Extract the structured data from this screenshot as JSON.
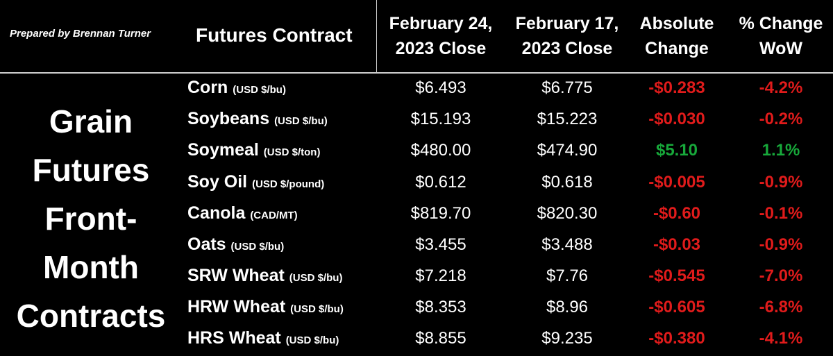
{
  "credit": "Prepared by Brennan Turner",
  "headers": {
    "contract": "Futures Contract",
    "feb24_line1": "February 24,",
    "feb24_line2": "2023 Close",
    "feb17_line1": "February 17,",
    "feb17_line2": "2023 Close",
    "abs_line1": "Absolute",
    "abs_line2": "Change",
    "pct_line1": "% Change",
    "pct_line2": "WoW"
  },
  "sidebar": [
    "Grain",
    "Futures",
    "Front-",
    "Month",
    "Contracts"
  ],
  "colors": {
    "negative": "#e01b1b",
    "positive": "#17a83a",
    "background": "#000000",
    "text": "#ffffff"
  },
  "rows": [
    {
      "name": "Corn",
      "unit": "(USD $/bu)",
      "feb24": "$6.493",
      "feb17": "$6.775",
      "abs": "-$0.283",
      "pct": "-4.2%",
      "direction": "neg"
    },
    {
      "name": "Soybeans",
      "unit": "(USD $/bu)",
      "feb24": "$15.193",
      "feb17": "$15.223",
      "abs": "-$0.030",
      "pct": "-0.2%",
      "direction": "neg"
    },
    {
      "name": "Soymeal",
      "unit": "(USD $/ton)",
      "feb24": "$480.00",
      "feb17": "$474.90",
      "abs": "$5.10",
      "pct": "1.1%",
      "direction": "pos"
    },
    {
      "name": "Soy Oil",
      "unit": "(USD $/pound)",
      "feb24": "$0.612",
      "feb17": "$0.618",
      "abs": "-$0.005",
      "pct": "-0.9%",
      "direction": "neg"
    },
    {
      "name": "Canola",
      "unit": "(CAD/MT)",
      "feb24": "$819.70",
      "feb17": "$820.30",
      "abs": "-$0.60",
      "pct": "-0.1%",
      "direction": "neg"
    },
    {
      "name": "Oats",
      "unit": "(USD $/bu)",
      "feb24": "$3.455",
      "feb17": "$3.488",
      "abs": "-$0.03",
      "pct": "-0.9%",
      "direction": "neg"
    },
    {
      "name": "SRW Wheat",
      "unit": "(USD $/bu)",
      "feb24": "$7.218",
      "feb17": "$7.76",
      "abs": "-$0.545",
      "pct": "-7.0%",
      "direction": "neg"
    },
    {
      "name": "HRW Wheat",
      "unit": "(USD $/bu)",
      "feb24": "$8.353",
      "feb17": "$8.96",
      "abs": "-$0.605",
      "pct": "-6.8%",
      "direction": "neg"
    },
    {
      "name": "HRS Wheat",
      "unit": "(USD $/bu)",
      "feb24": "$8.855",
      "feb17": "$9.235",
      "abs": "-$0.380",
      "pct": "-4.1%",
      "direction": "neg"
    }
  ]
}
